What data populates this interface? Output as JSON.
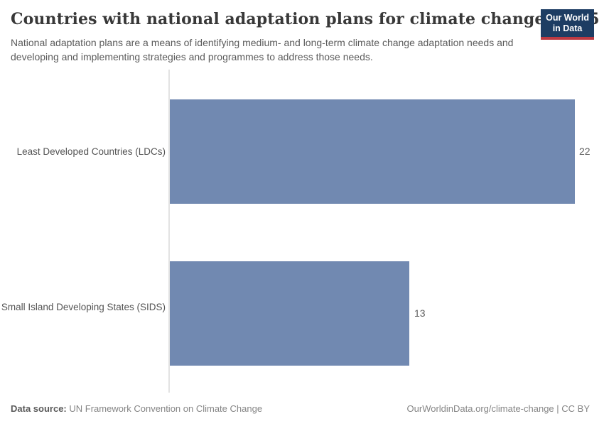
{
  "header": {
    "title": "Countries with national adaptation plans for climate change, 2025",
    "subtitle": "National adaptation plans are a means of identifying medium- and long-term climate change adaptation needs and developing and implementing strategies and programmes to address those needs.",
    "logo": {
      "line1": "Our World",
      "line2": "in Data"
    }
  },
  "chart_data": {
    "type": "bar",
    "orientation": "horizontal",
    "title": "Countries with national adaptation plans for climate change, 2025",
    "categories": [
      "Least Developed Countries (LDCs)",
      "Small Island Developing States (SIDS)"
    ],
    "values": [
      22,
      13
    ],
    "value_labels": [
      "22",
      "13"
    ],
    "xlabel": "",
    "ylabel": "",
    "xlim": [
      0,
      22
    ],
    "grid": false,
    "legend": "none"
  },
  "footer": {
    "source_label": "Data source:",
    "source_value": "UN Framework Convention on Climate Change",
    "link": "OurWorldinData.org/climate-change | CC BY"
  },
  "colors": {
    "bar": "#7189b1",
    "logo_bg": "#1d3d63",
    "logo_stripe": "#bc3a42",
    "axis": "#e3e3e3"
  }
}
